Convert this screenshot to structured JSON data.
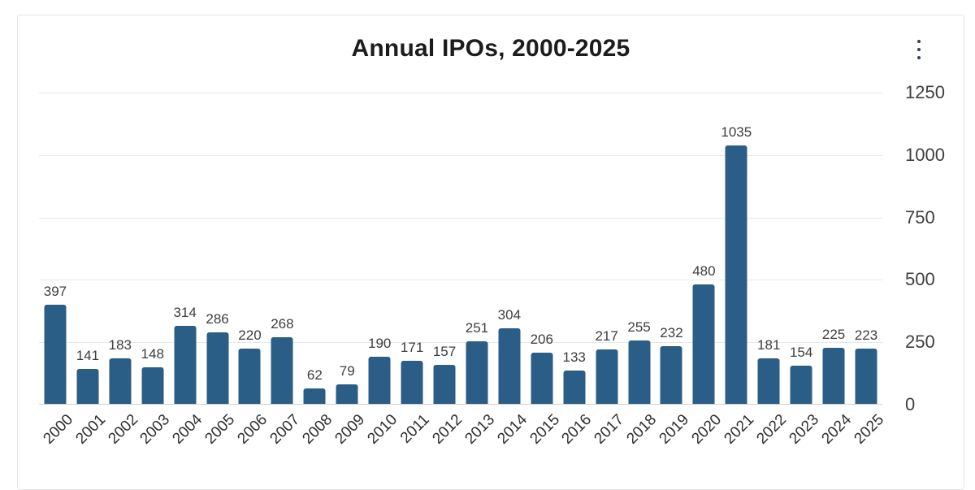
{
  "card": {
    "title": "Annual IPOs, 2000-2025",
    "menu_icon": "kebab-menu-icon"
  },
  "colors": {
    "bar": "#2b5e86",
    "gridline": "#e8e8e8",
    "axis_line": "#ccd1d6",
    "title_text": "#1c1c1c",
    "label_text": "#3d3d3d"
  },
  "chart_data": {
    "type": "bar",
    "title": "Annual IPOs, 2000-2025",
    "categories": [
      "2000",
      "2001",
      "2002",
      "2003",
      "2004",
      "2005",
      "2006",
      "2007",
      "2008",
      "2009",
      "2010",
      "2011",
      "2012",
      "2013",
      "2014",
      "2015",
      "2016",
      "2017",
      "2018",
      "2019",
      "2020",
      "2021",
      "2022",
      "2023",
      "2024",
      "2025"
    ],
    "values": [
      397,
      141,
      183,
      148,
      314,
      286,
      220,
      268,
      62,
      79,
      190,
      171,
      157,
      251,
      304,
      206,
      133,
      217,
      255,
      232,
      480,
      1035,
      181,
      154,
      225,
      223
    ],
    "xlabel": "",
    "ylabel": "",
    "y_ticks": [
      0,
      250,
      500,
      750,
      1000,
      1250
    ],
    "ylim": [
      0,
      1250
    ],
    "y_axis_side": "right",
    "grid": true,
    "legend": "none",
    "value_labels": true,
    "bar_color": "#2b5e86"
  }
}
